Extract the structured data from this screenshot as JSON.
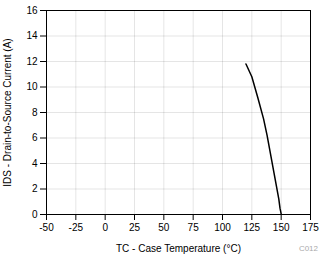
{
  "chart_data": {
    "type": "line",
    "x": [
      120,
      125,
      130,
      135,
      138,
      140,
      142,
      144,
      146,
      148,
      149,
      150
    ],
    "values": [
      11.8,
      10.8,
      9.2,
      7.5,
      6.2,
      5.2,
      4.2,
      3.2,
      2.2,
      1.2,
      0.5,
      0.05
    ],
    "color": "#000000",
    "xlabel": "TC - Case Temperature (°C)",
    "ylabel": "IDS - Drain-to-Source Current (A)",
    "xlim": [
      -50,
      175
    ],
    "xticks": [
      -50,
      -25,
      0,
      25,
      50,
      75,
      100,
      125,
      150,
      175
    ],
    "ylim": [
      0,
      16
    ],
    "yticks": [
      0,
      2,
      4,
      6,
      8,
      10,
      12,
      14,
      16
    ],
    "grid": true,
    "annotation": "C012"
  }
}
